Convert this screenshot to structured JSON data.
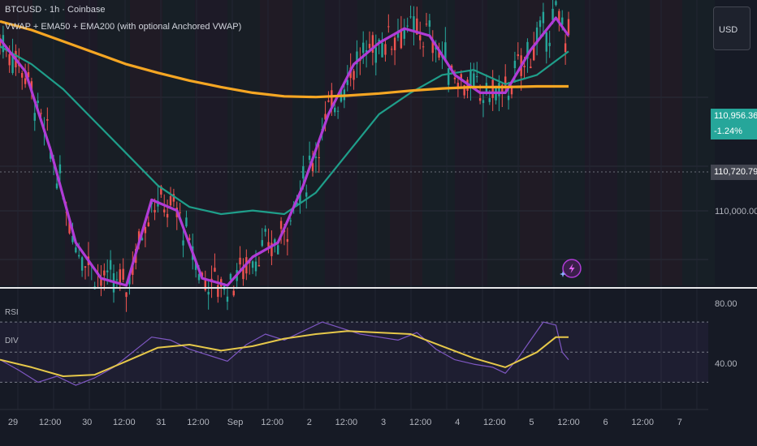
{
  "header": {
    "symbol_line": "BTCUSD · 1h · Coinbase",
    "indicator_line": "VWAP + EMA50 + EMA200 (with optional Anchored VWAP)"
  },
  "currency_button": "USD",
  "price_scale": {
    "labels": [
      "110,000.00"
    ],
    "last_price": "110,956.36",
    "change": "-1.24%",
    "crosshair_price": "110,720.79"
  },
  "rsi_pane": {
    "label_rsi": "RSI",
    "label_div": "DIV",
    "scale_labels": [
      "80.00",
      "40.00"
    ]
  },
  "time_axis": {
    "ticks": [
      "29",
      "12:00",
      "30",
      "12:00",
      "31",
      "12:00",
      "Sep",
      "12:00",
      "2",
      "12:00",
      "3",
      "12:00",
      "4",
      "12:00",
      "5",
      "12:00",
      "6",
      "12:00",
      "7"
    ]
  },
  "colors": {
    "background": "#161a25",
    "vwap": "#b03bd6",
    "ema50": "#1f9e8a",
    "ema200": "#f5a623",
    "candle_up": "#26a69a",
    "candle_down": "#ef5350",
    "rsi": "#7e57c2",
    "rsi_ma": "#e6c84a",
    "last_price_tag": "#26a69a",
    "crosshair_tag": "#434651"
  },
  "chart_data": {
    "type": "candlestick",
    "symbol": "BTCUSD",
    "interval": "1h",
    "price_range_visible": [
      107600,
      111600
    ],
    "ema200": [
      [
        0,
        111300
      ],
      [
        10,
        111180
      ],
      [
        20,
        111020
      ],
      [
        30,
        110860
      ],
      [
        40,
        110700
      ],
      [
        50,
        110580
      ],
      [
        60,
        110470
      ],
      [
        70,
        110380
      ],
      [
        80,
        110300
      ],
      [
        90,
        110250
      ],
      [
        100,
        110240
      ],
      [
        110,
        110260
      ],
      [
        120,
        110290
      ],
      [
        130,
        110330
      ],
      [
        140,
        110360
      ],
      [
        150,
        110380
      ],
      [
        160,
        110380
      ],
      [
        170,
        110390
      ],
      [
        180,
        110390
      ]
    ],
    "ema50": [
      [
        0,
        110950
      ],
      [
        10,
        110700
      ],
      [
        20,
        110350
      ],
      [
        30,
        109900
      ],
      [
        40,
        109450
      ],
      [
        50,
        109000
      ],
      [
        60,
        108700
      ],
      [
        70,
        108600
      ],
      [
        80,
        108650
      ],
      [
        90,
        108600
      ],
      [
        100,
        108900
      ],
      [
        110,
        109450
      ],
      [
        120,
        110000
      ],
      [
        130,
        110300
      ],
      [
        140,
        110550
      ],
      [
        150,
        110620
      ],
      [
        160,
        110420
      ],
      [
        170,
        110550
      ],
      [
        180,
        110880
      ]
    ],
    "vwap": [
      [
        0,
        111050
      ],
      [
        8,
        110600
      ],
      [
        16,
        109500
      ],
      [
        24,
        108200
      ],
      [
        32,
        107700
      ],
      [
        40,
        107600
      ],
      [
        48,
        108800
      ],
      [
        56,
        108650
      ],
      [
        64,
        107700
      ],
      [
        72,
        107600
      ],
      [
        80,
        108000
      ],
      [
        88,
        108200
      ],
      [
        96,
        109000
      ],
      [
        104,
        110000
      ],
      [
        112,
        110700
      ],
      [
        120,
        111000
      ],
      [
        128,
        111200
      ],
      [
        136,
        111100
      ],
      [
        144,
        110550
      ],
      [
        152,
        110300
      ],
      [
        160,
        110300
      ],
      [
        168,
        110900
      ],
      [
        176,
        111350
      ],
      [
        180,
        111100
      ]
    ],
    "rsi_range": [
      20,
      90
    ],
    "rsi_levels": [
      70,
      50,
      30
    ],
    "rsi": [
      [
        0,
        45
      ],
      [
        6,
        38
      ],
      [
        12,
        30
      ],
      [
        18,
        34
      ],
      [
        24,
        28
      ],
      [
        30,
        33
      ],
      [
        36,
        40
      ],
      [
        42,
        50
      ],
      [
        48,
        60
      ],
      [
        54,
        58
      ],
      [
        60,
        52
      ],
      [
        66,
        48
      ],
      [
        72,
        44
      ],
      [
        78,
        55
      ],
      [
        84,
        62
      ],
      [
        90,
        58
      ],
      [
        96,
        64
      ],
      [
        102,
        70
      ],
      [
        108,
        66
      ],
      [
        114,
        62
      ],
      [
        120,
        60
      ],
      [
        126,
        58
      ],
      [
        132,
        63
      ],
      [
        138,
        52
      ],
      [
        144,
        45
      ],
      [
        150,
        42
      ],
      [
        156,
        40
      ],
      [
        160,
        36
      ],
      [
        164,
        46
      ],
      [
        168,
        58
      ],
      [
        172,
        70
      ],
      [
        176,
        68
      ],
      [
        178,
        50
      ],
      [
        180,
        45
      ]
    ],
    "rsi_ma": [
      [
        0,
        45
      ],
      [
        10,
        40
      ],
      [
        20,
        34
      ],
      [
        30,
        35
      ],
      [
        40,
        44
      ],
      [
        50,
        53
      ],
      [
        60,
        55
      ],
      [
        70,
        51
      ],
      [
        80,
        54
      ],
      [
        90,
        59
      ],
      [
        100,
        62
      ],
      [
        110,
        64
      ],
      [
        120,
        63
      ],
      [
        130,
        62
      ],
      [
        140,
        54
      ],
      [
        150,
        46
      ],
      [
        160,
        40
      ],
      [
        170,
        50
      ],
      [
        176,
        60
      ],
      [
        180,
        60
      ]
    ]
  }
}
